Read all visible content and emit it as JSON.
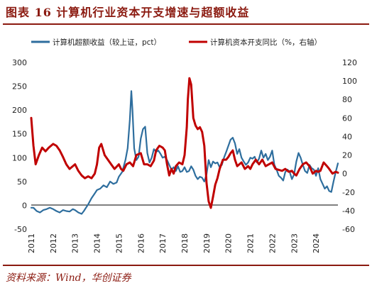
{
  "header": {
    "title": "图表 16   计算机行业资本开支增速与超额收益",
    "source": "资料来源：Wind，华创证券"
  },
  "colors": {
    "series1": "#2e6e9e",
    "series2": "#c00000",
    "accent": "#8b1a10"
  },
  "chart_data": {
    "type": "line",
    "title": "图表 16   计算机行业资本开支增速与超额收益",
    "xlabel": "",
    "ylabel_left": "",
    "ylabel_right": "",
    "x_ticks": [
      "2011",
      "2012",
      "2013",
      "2014",
      "2015",
      "2016",
      "2017",
      "2018",
      "2019",
      "2020",
      "2021",
      "2022",
      "2023",
      "2024"
    ],
    "x_range": [
      2011.0,
      2025.0
    ],
    "y_left_ticks": [
      "300",
      "250",
      "200",
      "150",
      "100",
      "50",
      "0",
      "-50"
    ],
    "y_left_range": [
      -50,
      300
    ],
    "y_right_ticks": [
      "120",
      "100",
      "80",
      "60",
      "40",
      "20",
      "0",
      "-20",
      "-40",
      "-60"
    ],
    "y_right_range": [
      -60,
      120
    ],
    "legend_position": "top",
    "grid": false,
    "series": [
      {
        "name": "计算机超额收益（较上证，pct）",
        "axis": "left",
        "color": "#2e6e9e",
        "points": [
          [
            2011.0,
            -5
          ],
          [
            2011.1,
            -5
          ],
          [
            2011.25,
            -12
          ],
          [
            2011.4,
            -15
          ],
          [
            2011.55,
            -10
          ],
          [
            2011.7,
            -8
          ],
          [
            2011.85,
            -5
          ],
          [
            2012.0,
            -8
          ],
          [
            2012.15,
            -12
          ],
          [
            2012.3,
            -15
          ],
          [
            2012.45,
            -10
          ],
          [
            2012.6,
            -12
          ],
          [
            2012.75,
            -13
          ],
          [
            2012.9,
            -8
          ],
          [
            2013.0,
            -10
          ],
          [
            2013.15,
            -15
          ],
          [
            2013.3,
            -18
          ],
          [
            2013.4,
            -12
          ],
          [
            2013.5,
            -5
          ],
          [
            2013.6,
            2
          ],
          [
            2013.75,
            15
          ],
          [
            2013.9,
            25
          ],
          [
            2014.0,
            32
          ],
          [
            2014.15,
            35
          ],
          [
            2014.3,
            42
          ],
          [
            2014.45,
            38
          ],
          [
            2014.6,
            50
          ],
          [
            2014.75,
            45
          ],
          [
            2014.9,
            48
          ],
          [
            2015.0,
            60
          ],
          [
            2015.15,
            70
          ],
          [
            2015.3,
            95
          ],
          [
            2015.4,
            120
          ],
          [
            2015.5,
            180
          ],
          [
            2015.57,
            240
          ],
          [
            2015.62,
            200
          ],
          [
            2015.7,
            120
          ],
          [
            2015.8,
            95
          ],
          [
            2015.9,
            102
          ],
          [
            2016.0,
            140
          ],
          [
            2016.1,
            160
          ],
          [
            2016.2,
            165
          ],
          [
            2016.3,
            110
          ],
          [
            2016.4,
            90
          ],
          [
            2016.5,
            100
          ],
          [
            2016.6,
            118
          ],
          [
            2016.7,
            112
          ],
          [
            2016.8,
            115
          ],
          [
            2016.9,
            108
          ],
          [
            2017.0,
            100
          ],
          [
            2017.1,
            102
          ],
          [
            2017.2,
            95
          ],
          [
            2017.3,
            85
          ],
          [
            2017.4,
            75
          ],
          [
            2017.5,
            80
          ],
          [
            2017.6,
            72
          ],
          [
            2017.7,
            82
          ],
          [
            2017.8,
            70
          ],
          [
            2017.9,
            72
          ],
          [
            2018.0,
            80
          ],
          [
            2018.1,
            70
          ],
          [
            2018.2,
            72
          ],
          [
            2018.3,
            82
          ],
          [
            2018.4,
            75
          ],
          [
            2018.5,
            62
          ],
          [
            2018.6,
            55
          ],
          [
            2018.7,
            60
          ],
          [
            2018.8,
            58
          ],
          [
            2018.9,
            50
          ],
          [
            2019.0,
            65
          ],
          [
            2019.1,
            95
          ],
          [
            2019.2,
            80
          ],
          [
            2019.3,
            92
          ],
          [
            2019.4,
            88
          ],
          [
            2019.5,
            90
          ],
          [
            2019.6,
            80
          ],
          [
            2019.7,
            85
          ],
          [
            2019.8,
            100
          ],
          [
            2019.9,
            112
          ],
          [
            2020.0,
            125
          ],
          [
            2020.1,
            138
          ],
          [
            2020.2,
            142
          ],
          [
            2020.3,
            130
          ],
          [
            2020.4,
            108
          ],
          [
            2020.5,
            118
          ],
          [
            2020.6,
            100
          ],
          [
            2020.7,
            92
          ],
          [
            2020.8,
            85
          ],
          [
            2020.9,
            90
          ],
          [
            2021.0,
            100
          ],
          [
            2021.1,
            98
          ],
          [
            2021.2,
            102
          ],
          [
            2021.3,
            90
          ],
          [
            2021.4,
            98
          ],
          [
            2021.5,
            115
          ],
          [
            2021.6,
            100
          ],
          [
            2021.7,
            108
          ],
          [
            2021.8,
            95
          ],
          [
            2021.9,
            102
          ],
          [
            2022.0,
            115
          ],
          [
            2022.1,
            85
          ],
          [
            2022.2,
            75
          ],
          [
            2022.3,
            62
          ],
          [
            2022.4,
            58
          ],
          [
            2022.5,
            52
          ],
          [
            2022.6,
            70
          ],
          [
            2022.7,
            75
          ],
          [
            2022.8,
            70
          ],
          [
            2022.9,
            55
          ],
          [
            2023.0,
            65
          ],
          [
            2023.1,
            92
          ],
          [
            2023.2,
            110
          ],
          [
            2023.3,
            100
          ],
          [
            2023.4,
            85
          ],
          [
            2023.5,
            72
          ],
          [
            2023.6,
            68
          ],
          [
            2023.7,
            85
          ],
          [
            2023.8,
            78
          ],
          [
            2023.9,
            75
          ],
          [
            2024.0,
            62
          ],
          [
            2024.1,
            78
          ],
          [
            2024.2,
            55
          ],
          [
            2024.3,
            45
          ],
          [
            2024.4,
            35
          ],
          [
            2024.5,
            40
          ],
          [
            2024.6,
            30
          ],
          [
            2024.7,
            28
          ],
          [
            2024.8,
            50
          ],
          [
            2024.9,
            70
          ],
          [
            2025.0,
            88
          ]
        ]
      },
      {
        "name": "计算机资本开支同比（%，右轴）",
        "axis": "right",
        "color": "#c00000",
        "points": [
          [
            2011.0,
            60
          ],
          [
            2011.1,
            30
          ],
          [
            2011.2,
            10
          ],
          [
            2011.35,
            20
          ],
          [
            2011.5,
            28
          ],
          [
            2011.65,
            24
          ],
          [
            2011.8,
            28
          ],
          [
            2012.0,
            32
          ],
          [
            2012.15,
            30
          ],
          [
            2012.3,
            25
          ],
          [
            2012.45,
            18
          ],
          [
            2012.6,
            10
          ],
          [
            2012.75,
            5
          ],
          [
            2013.0,
            10
          ],
          [
            2013.15,
            3
          ],
          [
            2013.3,
            -2
          ],
          [
            2013.45,
            -5
          ],
          [
            2013.6,
            -3
          ],
          [
            2013.75,
            -5
          ],
          [
            2013.9,
            0
          ],
          [
            2014.0,
            10
          ],
          [
            2014.1,
            28
          ],
          [
            2014.2,
            32
          ],
          [
            2014.35,
            20
          ],
          [
            2014.5,
            15
          ],
          [
            2014.65,
            10
          ],
          [
            2014.8,
            5
          ],
          [
            2015.0,
            10
          ],
          [
            2015.1,
            5
          ],
          [
            2015.2,
            3
          ],
          [
            2015.35,
            10
          ],
          [
            2015.5,
            12
          ],
          [
            2015.65,
            8
          ],
          [
            2015.8,
            20
          ],
          [
            2016.0,
            22
          ],
          [
            2016.15,
            10
          ],
          [
            2016.3,
            10
          ],
          [
            2016.45,
            8
          ],
          [
            2016.6,
            14
          ],
          [
            2016.7,
            25
          ],
          [
            2016.85,
            30
          ],
          [
            2017.0,
            28
          ],
          [
            2017.1,
            25
          ],
          [
            2017.2,
            10
          ],
          [
            2017.3,
            -2
          ],
          [
            2017.4,
            5
          ],
          [
            2017.5,
            0
          ],
          [
            2017.6,
            8
          ],
          [
            2017.75,
            12
          ],
          [
            2017.9,
            10
          ],
          [
            2018.0,
            20
          ],
          [
            2018.1,
            50
          ],
          [
            2018.15,
            80
          ],
          [
            2018.22,
            103
          ],
          [
            2018.3,
            96
          ],
          [
            2018.4,
            60
          ],
          [
            2018.5,
            52
          ],
          [
            2018.6,
            48
          ],
          [
            2018.7,
            50
          ],
          [
            2018.8,
            45
          ],
          [
            2018.9,
            30
          ],
          [
            2019.0,
            -10
          ],
          [
            2019.1,
            -30
          ],
          [
            2019.2,
            -37
          ],
          [
            2019.3,
            -25
          ],
          [
            2019.4,
            -12
          ],
          [
            2019.5,
            -5
          ],
          [
            2019.6,
            5
          ],
          [
            2019.75,
            15
          ],
          [
            2019.9,
            15
          ],
          [
            2020.0,
            18
          ],
          [
            2020.1,
            22
          ],
          [
            2020.2,
            25
          ],
          [
            2020.3,
            15
          ],
          [
            2020.4,
            8
          ],
          [
            2020.5,
            10
          ],
          [
            2020.6,
            12
          ],
          [
            2020.75,
            5
          ],
          [
            2020.9,
            8
          ],
          [
            2021.0,
            5
          ],
          [
            2021.1,
            10
          ],
          [
            2021.25,
            15
          ],
          [
            2021.4,
            10
          ],
          [
            2021.55,
            15
          ],
          [
            2021.7,
            8
          ],
          [
            2021.85,
            10
          ],
          [
            2022.0,
            12
          ],
          [
            2022.15,
            5
          ],
          [
            2022.3,
            4
          ],
          [
            2022.45,
            3
          ],
          [
            2022.6,
            5
          ],
          [
            2022.75,
            2
          ],
          [
            2022.9,
            3
          ],
          [
            2023.0,
            0
          ],
          [
            2023.1,
            -2
          ],
          [
            2023.25,
            5
          ],
          [
            2023.4,
            10
          ],
          [
            2023.55,
            12
          ],
          [
            2023.7,
            8
          ],
          [
            2023.85,
            0
          ],
          [
            2024.0,
            3
          ],
          [
            2024.1,
            2
          ],
          [
            2024.2,
            3
          ],
          [
            2024.35,
            12
          ],
          [
            2024.5,
            8
          ],
          [
            2024.6,
            5
          ],
          [
            2024.75,
            0
          ],
          [
            2024.9,
            2
          ],
          [
            2025.0,
            1
          ]
        ]
      }
    ]
  }
}
